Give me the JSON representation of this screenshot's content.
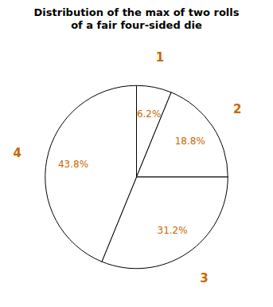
{
  "chart_data": {
    "type": "pie",
    "title": "Distribution of the max of two rolls\nof a fair four-sided die",
    "categories": [
      "1",
      "2",
      "3",
      "4"
    ],
    "values": [
      6.2,
      18.8,
      31.2,
      43.8
    ],
    "value_labels": [
      "6.2%",
      "18.8%",
      "31.2%",
      "43.8%"
    ],
    "data_labels": true,
    "color": "#ffffff"
  }
}
